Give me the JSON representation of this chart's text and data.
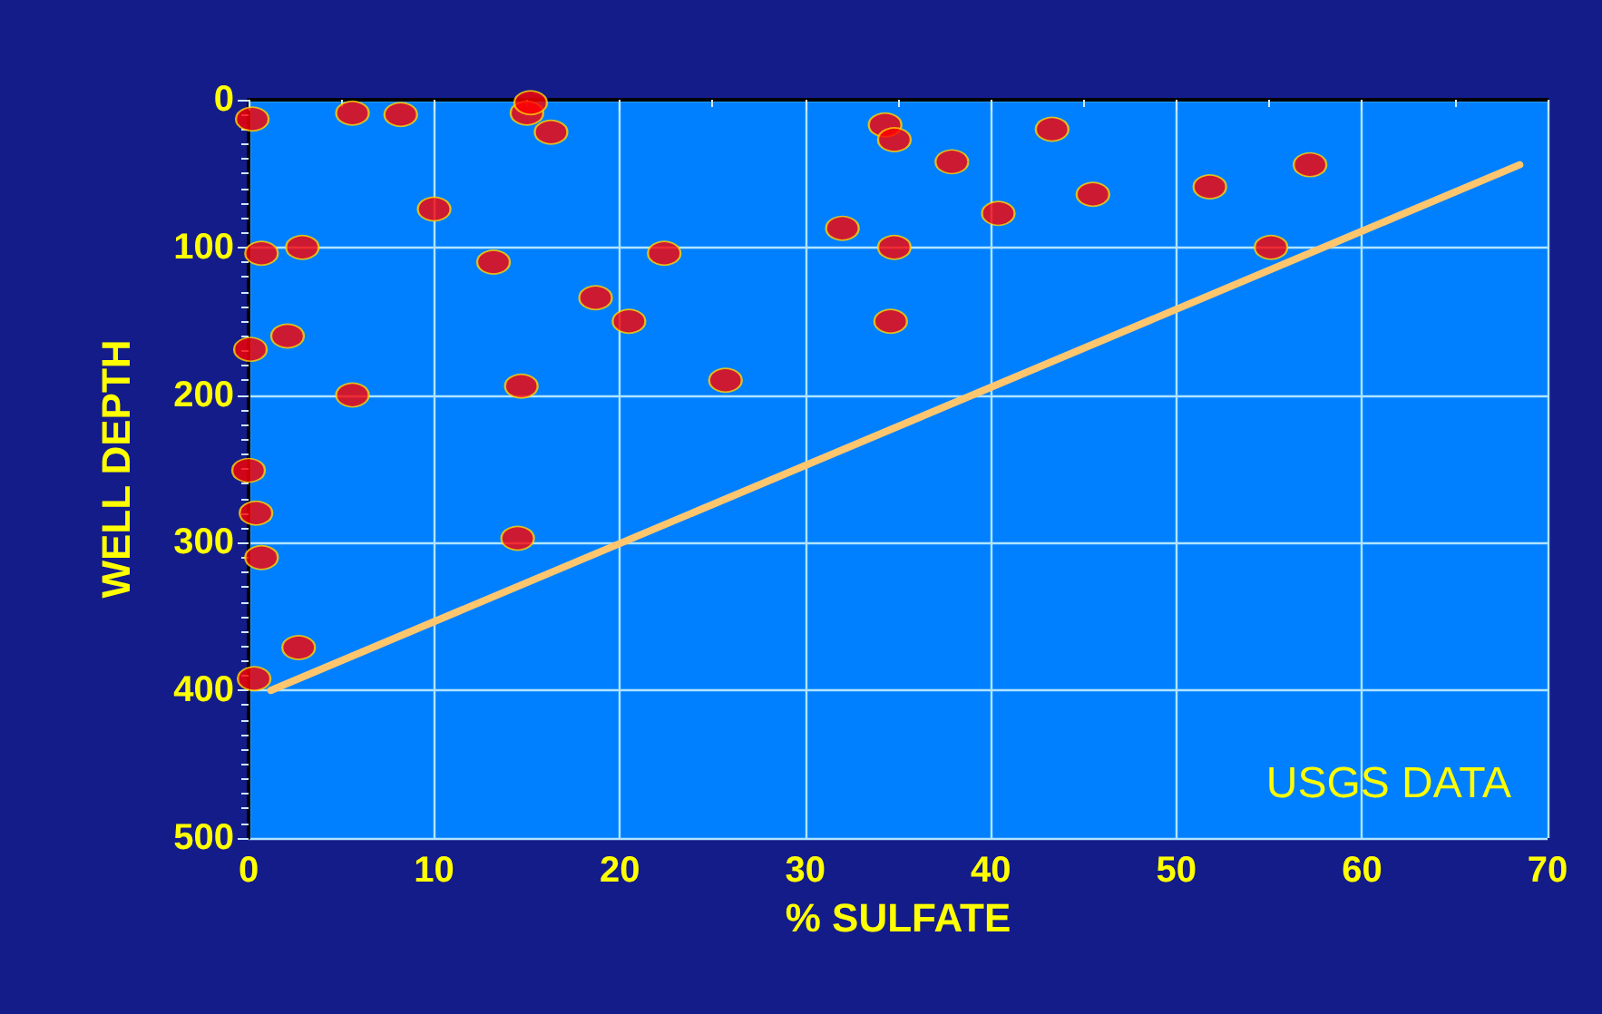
{
  "chart_data": {
    "type": "scatter",
    "xlabel": "% SULFATE",
    "ylabel": "WELL DEPTH",
    "annotations": [
      "USGS DATA"
    ],
    "xlim": [
      0,
      70
    ],
    "xticks": [
      0,
      10,
      20,
      30,
      40,
      50,
      60,
      70
    ],
    "ylim": [
      500,
      0
    ],
    "yticks": [
      0,
      100,
      200,
      300,
      400,
      500
    ],
    "grid": true,
    "marker": "circle",
    "series": [
      {
        "color": "#ff0000",
        "x": [
          0.2,
          5.6,
          8.2,
          15.0,
          15.2,
          16.3,
          10.0,
          13.2,
          0.7,
          2.9,
          22.4,
          32.0,
          18.7,
          20.5,
          2.1,
          0.1,
          5.6,
          14.7,
          25.7,
          0,
          0.4,
          0.7,
          14.5,
          2.7,
          0.3,
          34.3,
          34.8,
          37.9,
          43.3,
          45.5,
          40.4,
          34.8,
          34.6,
          51.8,
          57.2,
          55.1
        ],
        "values": [
          13,
          9,
          10,
          9,
          2,
          22,
          74,
          110,
          104,
          100,
          104,
          87,
          134,
          150,
          160,
          169,
          200,
          194,
          190,
          251,
          280,
          310,
          297,
          371,
          392,
          17,
          27,
          42,
          20,
          64,
          77,
          100,
          150,
          59,
          44,
          100
        ]
      },
      {
        "type": "line",
        "color": "#ffc66e",
        "marker": "none",
        "line_style": "solid",
        "x": [
          68.5,
          1.2
        ],
        "values": [
          44,
          400
        ]
      }
    ]
  }
}
